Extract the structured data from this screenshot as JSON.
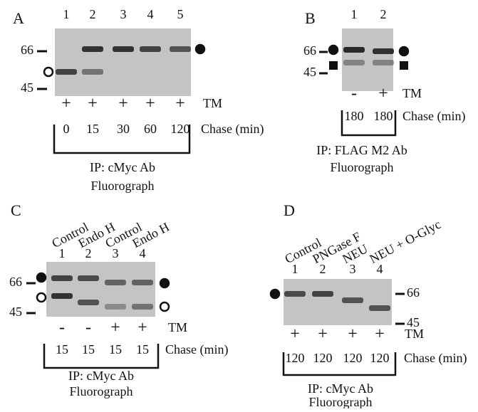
{
  "panels": [
    {
      "label": "A",
      "lanes": [
        "1",
        "2",
        "3",
        "4",
        "5"
      ],
      "markers": [
        "66",
        "45"
      ],
      "tm": [
        "+",
        "+",
        "+",
        "+",
        "+"
      ],
      "tm_label": "TM",
      "chase": [
        "0",
        "15",
        "30",
        "60",
        "120"
      ],
      "chase_label": "Chase (min)",
      "caption": [
        "IP: cMyc Ab",
        "Fluorograph"
      ]
    },
    {
      "label": "B",
      "lanes": [
        "1",
        "2"
      ],
      "markers": [
        "66",
        "45"
      ],
      "tm": [
        "-",
        "+"
      ],
      "tm_label": "TM",
      "chase": [
        "180",
        "180"
      ],
      "chase_label": "Chase (min)",
      "caption": [
        "IP: FLAG M2 Ab",
        "Fluorograph"
      ]
    },
    {
      "label": "C",
      "headers": [
        "Control",
        "Endo H",
        "Control",
        "Endo H"
      ],
      "lanes": [
        "1",
        "2",
        "3",
        "4"
      ],
      "markers": [
        "66",
        "45"
      ],
      "tm": [
        "-",
        "-",
        "+",
        "+"
      ],
      "tm_label": "TM",
      "chase": [
        "15",
        "15",
        "15",
        "15"
      ],
      "chase_label": "Chase (min)",
      "caption": [
        "IP: cMyc Ab",
        "Fluorograph"
      ]
    },
    {
      "label": "D",
      "headers": [
        "Control",
        "PNGase F",
        "NEU",
        "NEU + O-Glyc"
      ],
      "lanes": [
        "1",
        "2",
        "3",
        "4"
      ],
      "markers": [
        "66",
        "45"
      ],
      "tm": [
        "+",
        "+",
        "+",
        "+"
      ],
      "tm_label": "TM",
      "chase": [
        "120",
        "120",
        "120",
        "120"
      ],
      "chase_label": "Chase (min)",
      "caption": [
        "IP: cMyc Ab",
        "Fluorograph"
      ]
    }
  ]
}
